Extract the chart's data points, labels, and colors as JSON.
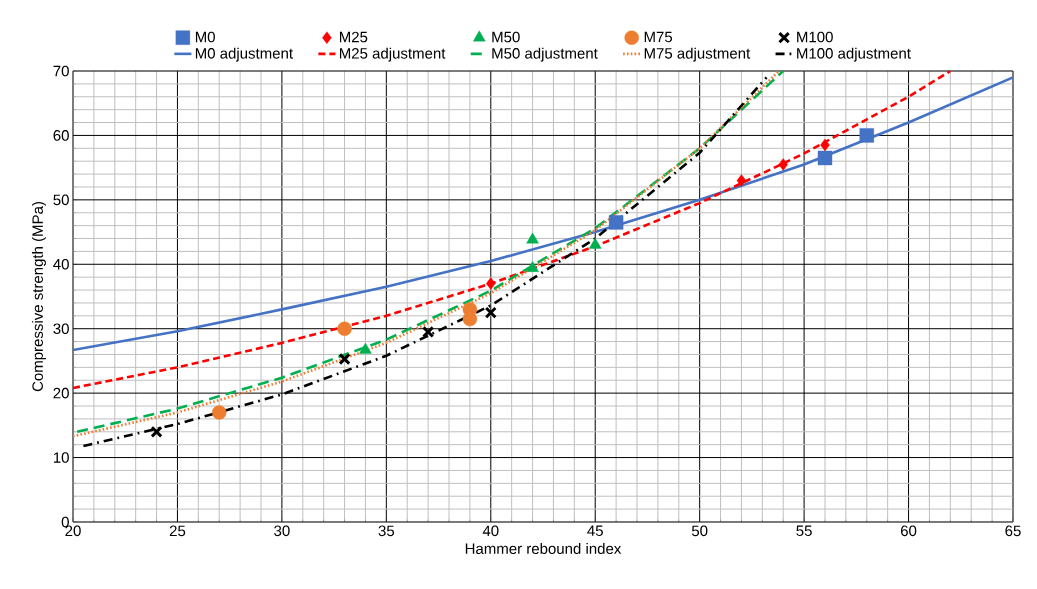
{
  "chart_data": {
    "type": "scatter",
    "xlabel": "Hammer rebound index",
    "ylabel": "Compressive strength (MPa)",
    "xlim": [
      20,
      65
    ],
    "ylim": [
      0,
      70
    ],
    "xticks": [
      20,
      25,
      30,
      35,
      40,
      45,
      50,
      55,
      60,
      65
    ],
    "yticks": [
      0,
      10,
      20,
      30,
      40,
      50,
      60,
      70
    ],
    "grid": true,
    "legend": "top",
    "series": [
      {
        "name": "M0",
        "marker": "square",
        "color": "#4472c4",
        "x": [
          46,
          56,
          58
        ],
        "values": [
          46.5,
          56.5,
          60
        ]
      },
      {
        "name": "M25",
        "marker": "diamond",
        "color": "#ff0000",
        "x": [
          40,
          52,
          54,
          56
        ],
        "values": [
          37,
          53,
          55.5,
          58.5
        ]
      },
      {
        "name": "M50",
        "marker": "triangle",
        "color": "#00b050",
        "x": [
          34,
          42,
          42,
          45
        ],
        "values": [
          26.7,
          43.8,
          39.4,
          43
        ]
      },
      {
        "name": "M75",
        "marker": "circle",
        "color": "#ed7d31",
        "x": [
          27,
          33,
          39,
          39
        ],
        "values": [
          17,
          30,
          33,
          31.5
        ]
      },
      {
        "name": "M100",
        "marker": "cross",
        "color": "#000000",
        "x": [
          24,
          33,
          37,
          40
        ],
        "values": [
          14,
          25.3,
          29.5,
          32.5
        ]
      },
      {
        "name": "M0 adjustment",
        "type": "line",
        "line_style": "solid",
        "color": "#4472c4",
        "x": [
          20,
          25,
          30,
          35,
          40,
          45,
          50,
          55,
          60,
          65
        ],
        "values": [
          26.7,
          29.6,
          33,
          36.5,
          40.5,
          45,
          50,
          55.5,
          62,
          69
        ]
      },
      {
        "name": "M25 adjustment",
        "type": "line",
        "line_style": "dashed",
        "color": "#ff0000",
        "x": [
          20,
          25,
          30,
          35,
          40,
          45,
          50,
          55,
          60,
          62
        ],
        "values": [
          20.8,
          24,
          27.8,
          32,
          37,
          42.8,
          49.5,
          57.2,
          66,
          70
        ]
      },
      {
        "name": "M50 adjustment",
        "type": "line",
        "line_style": "longdashed",
        "color": "#00b050",
        "x": [
          20.2,
          25,
          30,
          35,
          40,
          45,
          50,
          54
        ],
        "values": [
          14,
          17.6,
          22.4,
          28.3,
          35.9,
          45.6,
          58,
          70
        ]
      },
      {
        "name": "M75 adjustment",
        "type": "line",
        "line_style": "dotted",
        "color": "#ed7d31",
        "x": [
          20,
          25,
          30,
          35,
          40,
          45,
          50,
          53.8
        ],
        "values": [
          13.3,
          17,
          21.8,
          27.8,
          35.5,
          45.3,
          58,
          70
        ]
      },
      {
        "name": "M100 adjustment",
        "type": "line",
        "line_style": "dashdot",
        "color": "#000000",
        "x": [
          20.5,
          25,
          30,
          35,
          40,
          45,
          50,
          53.2
        ],
        "values": [
          11.8,
          15.2,
          19.8,
          25.8,
          33.6,
          44,
          57.3,
          69
        ]
      }
    ]
  }
}
